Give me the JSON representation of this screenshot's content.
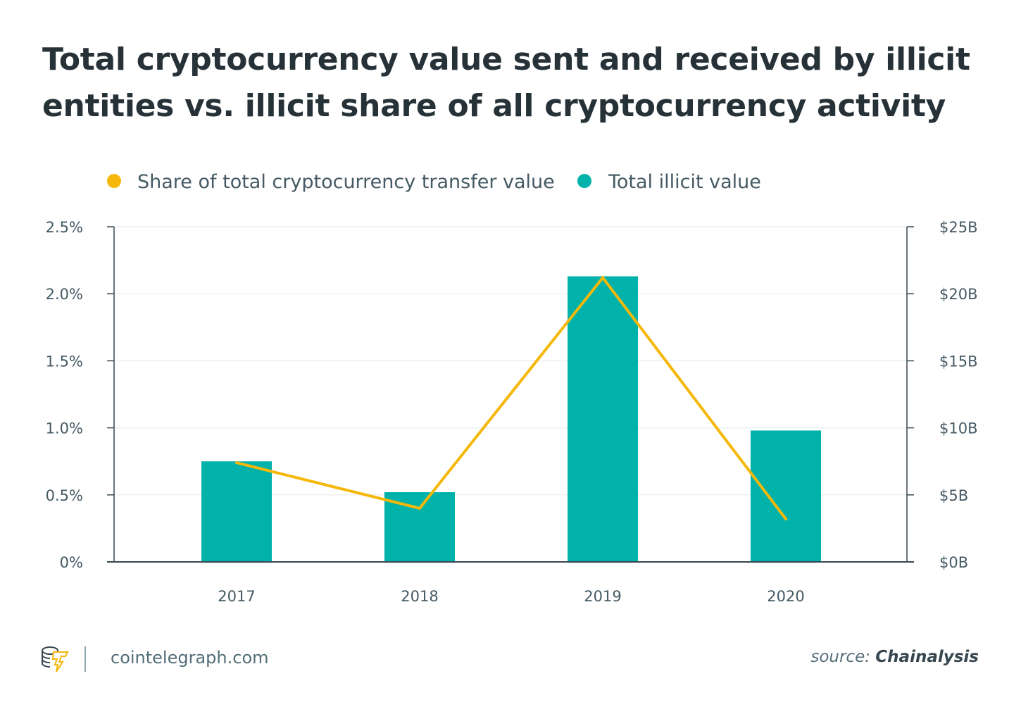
{
  "chart_data": {
    "type": "bar+line",
    "title": "Total cryptocurrency value sent and received by illicit entities vs. illicit share of all cryptocurrency activity",
    "categories": [
      "2017",
      "2018",
      "2019",
      "2020"
    ],
    "series": [
      {
        "name": "Share of total cryptocurrency transfer value",
        "type": "line",
        "axis": "left",
        "unit": "%",
        "values": [
          0.74,
          0.4,
          2.12,
          0.32
        ],
        "color": "#f5b80a"
      },
      {
        "name": "Total illicit value",
        "type": "bar",
        "axis": "right",
        "unit": "$B",
        "values": [
          7.5,
          5.2,
          21.3,
          9.8
        ],
        "color": "#00b2a9"
      }
    ],
    "y_left": {
      "range": [
        0,
        2.5
      ],
      "ticks": [
        "0%",
        "0.5%",
        "1.0%",
        "1.5%",
        "2.0%",
        "2.5%"
      ]
    },
    "y_right": {
      "range": [
        0,
        25
      ],
      "ticks": [
        "$0B",
        "$5B",
        "$10B",
        "$15B",
        "$20B",
        "$25B"
      ]
    },
    "grid": true,
    "legend_position": "top-left"
  },
  "footer": {
    "site": "cointelegraph.com",
    "source_label": "source:",
    "source_name": "Chainalysis"
  }
}
